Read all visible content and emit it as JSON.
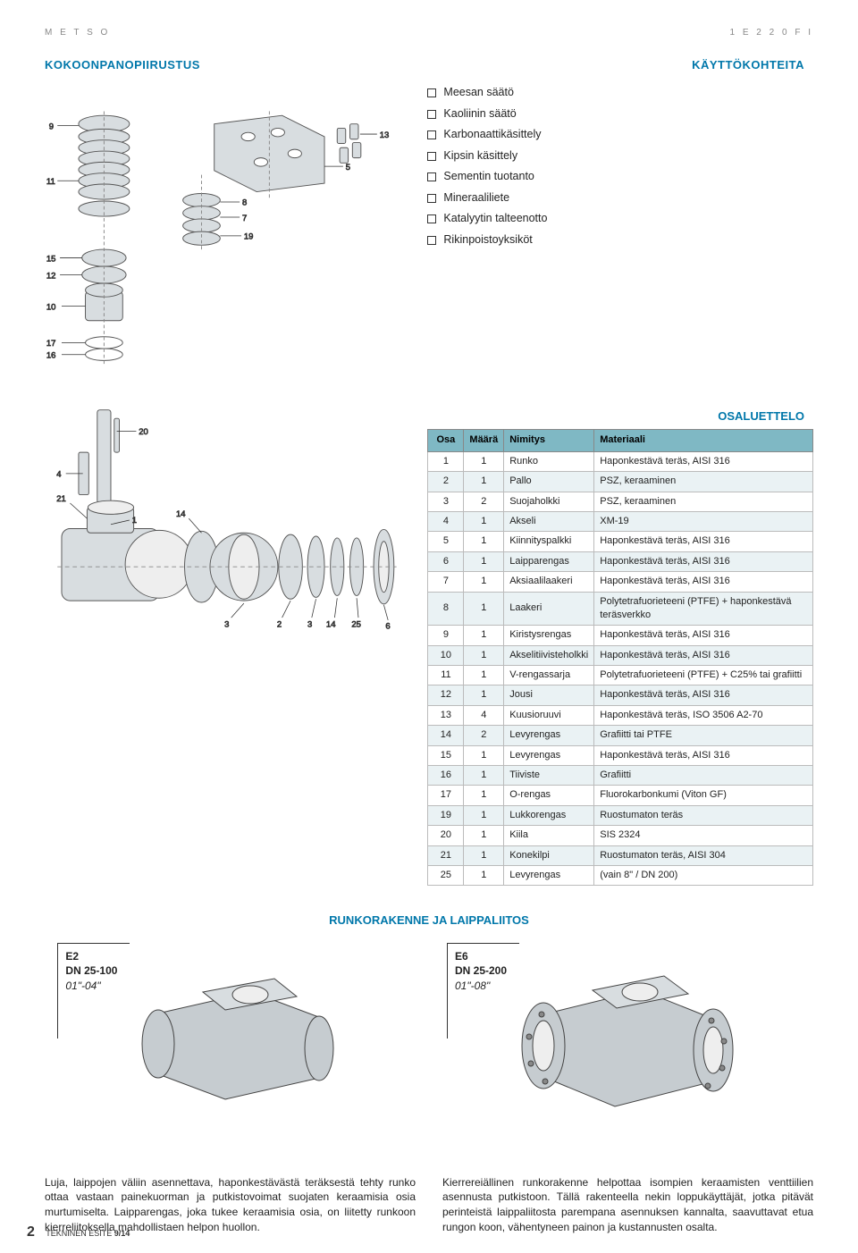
{
  "header": {
    "left": "M E T S O",
    "right": "1  E 2  2 0  F I"
  },
  "sections": {
    "assembly": "KOKOONPANOPIIRUSTUS",
    "applications": "KÄYTTÖKOHTEITA",
    "partslist": "OSALUETTELO",
    "bodyconn": "RUNKORAKENNE JA LAIPPALIITOS"
  },
  "applications": [
    "Meesan säätö",
    "Kaoliinin säätö",
    "Karbonaattikäsittely",
    "Kipsin käsittely",
    "Sementin tuotanto",
    "Mineraaliliete",
    "Katalyytin talteenotto",
    "Rikinpoistoyksiköt"
  ],
  "parts": {
    "headers": [
      "Osa",
      "Määrä",
      "Nimitys",
      "Materiaali"
    ],
    "rows": [
      [
        "1",
        "1",
        "Runko",
        "Haponkestävä teräs, AISI 316"
      ],
      [
        "2",
        "1",
        "Pallo",
        "PSZ, keraaminen"
      ],
      [
        "3",
        "2",
        "Suojaholkki",
        "PSZ, keraaminen"
      ],
      [
        "4",
        "1",
        "Akseli",
        "XM-19"
      ],
      [
        "5",
        "1",
        "Kiinnityspalkki",
        "Haponkestävä teräs, AISI 316"
      ],
      [
        "6",
        "1",
        "Laipparengas",
        "Haponkestävä teräs, AISI 316"
      ],
      [
        "7",
        "1",
        "Aksiaalilaakeri",
        "Haponkestävä teräs, AISI 316"
      ],
      [
        "8",
        "1",
        "Laakeri",
        "Polytetrafuorieteeni (PTFE) + haponkestävä teräsverkko"
      ],
      [
        "9",
        "1",
        "Kiristysrengas",
        "Haponkestävä teräs, AISI 316"
      ],
      [
        "10",
        "1",
        "Akselitiivisteholkki",
        "Haponkestävä teräs, AISI 316"
      ],
      [
        "11",
        "1",
        "V-rengassarja",
        "Polytetrafuorieteeni (PTFE) + C25% tai grafiitti"
      ],
      [
        "12",
        "1",
        "Jousi",
        "Haponkestävä teräs, AISI 316"
      ],
      [
        "13",
        "4",
        "Kuusioruuvi",
        "Haponkestävä teräs, ISO 3506 A2-70"
      ],
      [
        "14",
        "2",
        "Levyrengas",
        "Grafiitti tai PTFE"
      ],
      [
        "15",
        "1",
        "Levyrengas",
        "Haponkestävä teräs, AISI 316"
      ],
      [
        "16",
        "1",
        "Tiiviste",
        "Grafiitti"
      ],
      [
        "17",
        "1",
        "O-rengas",
        "Fluorokarbonkumi (Viton GF)"
      ],
      [
        "19",
        "1",
        "Lukkorengas",
        "Ruostumaton teräs"
      ],
      [
        "20",
        "1",
        "Kiila",
        "SIS 2324"
      ],
      [
        "21",
        "1",
        "Konekilpi",
        "Ruostumaton teräs, AISI 304"
      ],
      [
        "25",
        "1",
        "Levyrengas",
        "(vain 8\" / DN 200)"
      ]
    ]
  },
  "callouts_upper": [
    "9",
    "11",
    "13",
    "5",
    "8",
    "7",
    "19",
    "15",
    "12",
    "10",
    "17",
    "16",
    "20",
    "4"
  ],
  "callouts_lower": [
    "21",
    "1",
    "14",
    "3",
    "2",
    "3",
    "14",
    "25",
    "6"
  ],
  "bodies": {
    "e2": {
      "model": "E2",
      "dn": "DN 25-100",
      "inch": "01\"-04\""
    },
    "e6": {
      "model": "E6",
      "dn": "DN 25-200",
      "inch": "01\"-08\""
    }
  },
  "paragraphs": {
    "left": "Luja, laippojen väliin asennettava, haponkestävästä teräksestä tehty runko ottaa vastaan painekuorman ja putkistovoimat suojaten keraamisia osia murtumiselta. Laipparengas, joka tukee keraamisia osia, on liitetty runkoon kierreliitoksella mahdollistaen helpon huollon.",
    "right": "Kierrereiällinen runkorakenne helpottaa isompien keraamisten venttiilien asennusta putkistoon. Tällä rakenteella nekin loppukäyttäjät, jotka pitävät perinteistä laippaliitosta parempana asennuksen kannalta, saavuttavat etua rungon koon, vähentyneen painon ja kustannusten osalta."
  },
  "footer": {
    "page": "2",
    "label": "TEKNINEN ESITE ",
    "issue": "9/14"
  },
  "colors": {
    "heading": "#0077aa",
    "table_header_bg": "#7fb8c4",
    "table_row_alt": "#eaf2f4",
    "diagram_fill": "#d8dde0",
    "diagram_stroke": "#555"
  }
}
